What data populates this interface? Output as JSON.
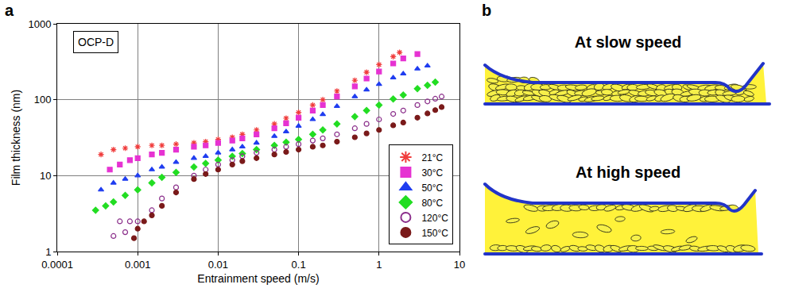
{
  "panel_labels": {
    "chart": "a",
    "diagram": "b"
  },
  "chart_data": {
    "type": "scatter",
    "x_label": "Entrainment speed (m/s)",
    "y_label": "Film thickness (nm)",
    "annotations": [
      "OCP-D"
    ],
    "log": true,
    "grid": true,
    "legend": "lower right",
    "xlim": [
      0.0001,
      10
    ],
    "xticks": [
      0.0001,
      0.001,
      0.01,
      0.1,
      1,
      10
    ],
    "ylim": [
      1,
      1000
    ],
    "yticks": [
      1,
      10,
      100,
      1000
    ],
    "series": [
      {
        "name": "21°C",
        "color": "#f03c3c",
        "marker": "asterisk-open",
        "x": [
          0.00035,
          0.0005,
          0.0007,
          0.001,
          0.0015,
          0.002,
          0.003,
          0.005,
          0.007,
          0.01,
          0.015,
          0.02,
          0.03,
          0.05,
          0.07,
          0.1,
          0.15,
          0.2,
          0.3,
          0.5,
          0.7,
          1,
          1.5,
          1.8
        ],
        "values": [
          19,
          22,
          23,
          24,
          25,
          25,
          26,
          27,
          28,
          30,
          32,
          35,
          40,
          48,
          57,
          68,
          85,
          100,
          130,
          180,
          230,
          290,
          370,
          420
        ]
      },
      {
        "name": "30°C",
        "color": "#e632d2",
        "marker": "square",
        "x": [
          0.00045,
          0.0006,
          0.0008,
          0.001,
          0.0015,
          0.002,
          0.003,
          0.005,
          0.007,
          0.01,
          0.015,
          0.02,
          0.03,
          0.05,
          0.07,
          0.1,
          0.15,
          0.2,
          0.3,
          0.5,
          0.7,
          1,
          1.5,
          2,
          3
        ],
        "values": [
          12,
          14,
          16,
          17,
          19,
          20,
          22,
          24,
          25,
          27,
          29,
          31,
          35,
          42,
          49,
          58,
          72,
          85,
          110,
          150,
          190,
          235,
          300,
          350,
          400
        ]
      },
      {
        "name": "50°C",
        "color": "#1f3df0",
        "marker": "triangle-up",
        "x": [
          0.00035,
          0.0005,
          0.0007,
          0.001,
          0.0015,
          0.002,
          0.003,
          0.005,
          0.007,
          0.01,
          0.015,
          0.02,
          0.03,
          0.05,
          0.07,
          0.1,
          0.15,
          0.2,
          0.3,
          0.5,
          0.7,
          1,
          1.5,
          2,
          3,
          4
        ],
        "values": [
          6.5,
          8,
          9,
          10,
          12,
          13,
          15,
          17,
          18,
          20,
          22,
          24,
          27,
          33,
          38,
          45,
          55,
          64,
          82,
          110,
          135,
          160,
          195,
          220,
          255,
          280
        ]
      },
      {
        "name": "80°C",
        "color": "#22dd22",
        "marker": "diamond",
        "x": [
          0.0003,
          0.0004,
          0.0005,
          0.0007,
          0.001,
          0.0015,
          0.002,
          0.003,
          0.005,
          0.007,
          0.01,
          0.015,
          0.02,
          0.03,
          0.05,
          0.07,
          0.1,
          0.15,
          0.2,
          0.3,
          0.5,
          0.7,
          1,
          1.5,
          2,
          3,
          4,
          5
        ],
        "values": [
          3.5,
          4,
          4.5,
          5.5,
          6.5,
          8,
          9.5,
          11,
          13,
          14.5,
          16,
          18,
          19.5,
          22,
          25,
          27.5,
          30,
          35,
          40,
          48,
          60,
          72,
          85,
          102,
          115,
          140,
          155,
          170
        ]
      },
      {
        "name": "120°C",
        "color": "#8b2f8b",
        "marker": "circle-open",
        "x": [
          0.0005,
          0.0006,
          0.0007,
          0.0008,
          0.001,
          0.0015,
          0.002,
          0.003,
          0.005,
          0.007,
          0.01,
          0.015,
          0.02,
          0.03,
          0.05,
          0.07,
          0.1,
          0.15,
          0.2,
          0.3,
          0.5,
          0.7,
          1,
          1.5,
          2,
          3,
          4,
          5,
          6
        ],
        "values": [
          1.6,
          2.5,
          1.8,
          2.5,
          2.5,
          3.5,
          5,
          7,
          10,
          12,
          14,
          16,
          18,
          20,
          22,
          24,
          26,
          29,
          31,
          35,
          42,
          48,
          55,
          65,
          72,
          85,
          95,
          103,
          110
        ]
      },
      {
        "name": "150°C",
        "color": "#7a1a1a",
        "marker": "circle",
        "x": [
          0.0009,
          0.001,
          0.0012,
          0.0015,
          0.002,
          0.003,
          0.005,
          0.007,
          0.01,
          0.015,
          0.02,
          0.03,
          0.05,
          0.07,
          0.1,
          0.15,
          0.2,
          0.3,
          0.5,
          0.7,
          1,
          1.5,
          2,
          3,
          4,
          5,
          6
        ],
        "values": [
          1.5,
          2,
          2.5,
          3,
          4,
          6,
          9,
          10.5,
          12,
          14,
          15.5,
          17,
          19,
          20.5,
          22,
          24,
          25,
          28,
          32,
          36,
          40,
          46,
          50,
          58,
          66,
          73,
          80
        ]
      }
    ]
  },
  "diagram": {
    "sketches": [
      {
        "title": "At slow speed"
      },
      {
        "title": "At high speed"
      }
    ]
  }
}
